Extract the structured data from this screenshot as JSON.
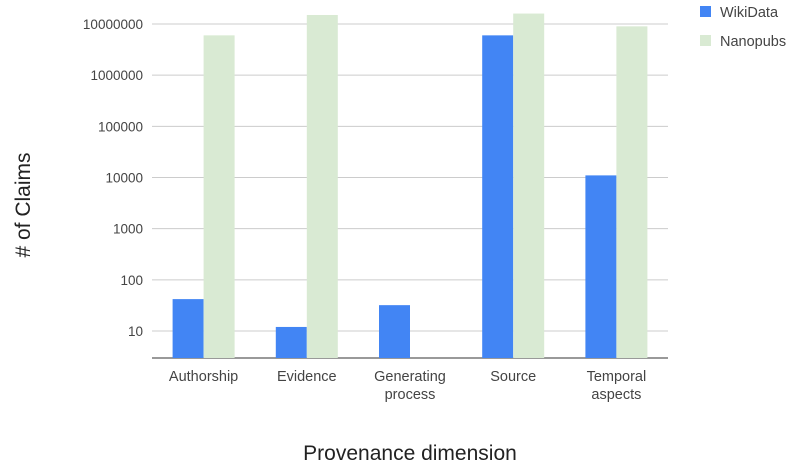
{
  "chart_data": {
    "type": "bar",
    "title": "",
    "xlabel": "Provenance dimension",
    "ylabel": "# of Claims",
    "y_scale": "log",
    "ylim": [
      3,
      15000000
    ],
    "y_ticks": [
      "10",
      "100",
      "1000",
      "10000",
      "100000",
      "1000000",
      "10000000"
    ],
    "grid": true,
    "legend_position": "top-right",
    "categories": [
      [
        "Authorship"
      ],
      [
        "Evidence"
      ],
      [
        "Generating",
        "process"
      ],
      [
        "Source"
      ],
      [
        "Temporal",
        "aspects"
      ]
    ],
    "series": [
      {
        "name": "WikiData",
        "color": "#4285f4",
        "values": [
          42,
          12,
          32,
          6000000,
          11000
        ]
      },
      {
        "name": "Nanopubs",
        "color": "#d9ead3",
        "values": [
          6000000,
          15000000,
          null,
          16000000,
          9000000
        ]
      }
    ]
  }
}
